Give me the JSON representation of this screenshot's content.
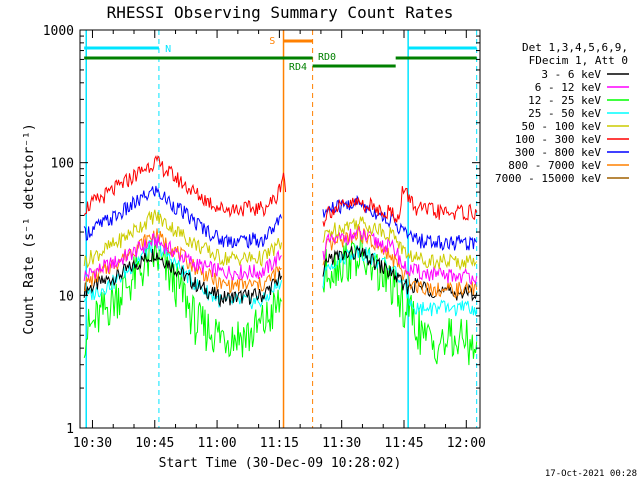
{
  "chart_data": {
    "type": "line",
    "title": "RHESSI Observing Summary Count Rates",
    "xlabel": "Start Time (30-Dec-09 10:28:02)",
    "ylabel": "Count Rate (s⁻¹ detector⁻¹)",
    "yscale": "log",
    "ylim": [
      1,
      1000
    ],
    "xlim_minutes": [
      -1.0,
      95.3
    ],
    "x_start_time": "10:28:02",
    "x_ticks": [
      {
        "label": "10:30",
        "minutes": 2
      },
      {
        "label": "10:45",
        "minutes": 17
      },
      {
        "label": "11:00",
        "minutes": 32
      },
      {
        "label": "11:15",
        "minutes": 47
      },
      {
        "label": "11:30",
        "minutes": 62
      },
      {
        "label": "11:45",
        "minutes": 77
      },
      {
        "label": "12:00",
        "minutes": 92
      }
    ],
    "y_ticks": [
      {
        "label": "1",
        "value": 1
      },
      {
        "label": "10",
        "value": 10
      },
      {
        "label": "100",
        "value": 100
      },
      {
        "label": "1000",
        "value": 1000
      }
    ],
    "legend_header": [
      "Det 1,3,4,5,6,9,",
      "FDecim 1, Att 0"
    ],
    "segments": [
      [
        0,
        48.5
      ],
      [
        57.5,
        94.5
      ]
    ],
    "series": [
      {
        "name": "3 - 6 keV",
        "color": "#000000",
        "points": [
          [
            0,
            11
          ],
          [
            8,
            14
          ],
          [
            17,
            21
          ],
          [
            27,
            12
          ],
          [
            33,
            9.5
          ],
          [
            43,
            10
          ],
          [
            47.5,
            14
          ],
          [
            49,
            20
          ],
          [
            57.5,
            13
          ],
          [
            58.5,
            19
          ],
          [
            66,
            21
          ],
          [
            75,
            14
          ],
          [
            77,
            11.5
          ],
          [
            80,
            12
          ],
          [
            86,
            10.5
          ],
          [
            94.5,
            10.5
          ]
        ]
      },
      {
        "name": "6 - 12 keV",
        "color": "#ff00ff",
        "points": [
          [
            0,
            14
          ],
          [
            8,
            18
          ],
          [
            17,
            26
          ],
          [
            27,
            17
          ],
          [
            33,
            15
          ],
          [
            43,
            15
          ],
          [
            47.5,
            20
          ],
          [
            49,
            26
          ],
          [
            57.5,
            20
          ],
          [
            58.5,
            25
          ],
          [
            66,
            29
          ],
          [
            75,
            22
          ],
          [
            77,
            16
          ],
          [
            80,
            15
          ],
          [
            86,
            14
          ],
          [
            94.5,
            14
          ]
        ]
      },
      {
        "name": "12 - 25 keV",
        "color": "#00ff00",
        "points": [
          [
            0,
            5
          ],
          [
            8,
            10
          ],
          [
            17,
            20
          ],
          [
            24,
            10
          ],
          [
            27,
            6
          ],
          [
            33,
            5
          ],
          [
            40,
            5
          ],
          [
            44,
            6.5
          ],
          [
            47.5,
            9
          ],
          [
            49,
            13
          ],
          [
            57.5,
            12
          ],
          [
            58.5,
            16
          ],
          [
            66,
            20
          ],
          [
            74,
            12
          ],
          [
            76,
            9
          ],
          [
            79,
            7
          ],
          [
            82,
            4.5
          ],
          [
            94.5,
            4.5
          ]
        ]
      },
      {
        "name": "25 - 50 keV",
        "color": "#00ffff",
        "points": [
          [
            0,
            9.5
          ],
          [
            8,
            13
          ],
          [
            17,
            25
          ],
          [
            27,
            12
          ],
          [
            33,
            9
          ],
          [
            43,
            9
          ],
          [
            47.5,
            13
          ],
          [
            49,
            19
          ],
          [
            57.5,
            12
          ],
          [
            58.5,
            17
          ],
          [
            66,
            22
          ],
          [
            75,
            15
          ],
          [
            78,
            10
          ],
          [
            80,
            8
          ],
          [
            86,
            8
          ],
          [
            94.5,
            8
          ]
        ]
      },
      {
        "name": "50 - 100 keV",
        "color": "#cccc00",
        "points": [
          [
            0,
            18
          ],
          [
            8,
            25
          ],
          [
            17,
            40
          ],
          [
            27,
            24
          ],
          [
            33,
            19
          ],
          [
            43,
            19
          ],
          [
            47.5,
            25
          ],
          [
            49,
            32
          ],
          [
            57.5,
            25
          ],
          [
            58.5,
            30
          ],
          [
            66,
            36
          ],
          [
            75,
            28
          ],
          [
            77,
            21
          ],
          [
            80,
            19
          ],
          [
            86,
            18
          ],
          [
            94.5,
            18
          ]
        ]
      },
      {
        "name": "100 - 300 keV",
        "color": "#ff0000",
        "points": [
          [
            0,
            45
          ],
          [
            8,
            65
          ],
          [
            17,
            102
          ],
          [
            27,
            58
          ],
          [
            33,
            45
          ],
          [
            43,
            45
          ],
          [
            46.5,
            55
          ],
          [
            48,
            85
          ],
          [
            48.5,
            60
          ],
          [
            57.5,
            35
          ],
          [
            58.5,
            43
          ],
          [
            66,
            50
          ],
          [
            74,
            42
          ],
          [
            76,
            38
          ],
          [
            76.6,
            62
          ],
          [
            78,
            56
          ],
          [
            80,
            45
          ],
          [
            86,
            42
          ],
          [
            94.5,
            42
          ]
        ]
      },
      {
        "name": "300 - 800 keV",
        "color": "#0000ff",
        "points": [
          [
            0,
            29
          ],
          [
            8,
            40
          ],
          [
            17,
            62
          ],
          [
            27,
            35
          ],
          [
            33,
            26
          ],
          [
            43,
            26
          ],
          [
            47.5,
            38
          ],
          [
            49,
            50
          ],
          [
            57.5,
            39
          ],
          [
            58.5,
            44
          ],
          [
            66,
            50
          ],
          [
            75,
            35
          ],
          [
            77,
            30
          ],
          [
            80,
            26
          ],
          [
            86,
            25
          ],
          [
            94.5,
            25
          ]
        ]
      },
      {
        "name": "800 - 7000 keV",
        "color": "#ff8000",
        "points": [
          [
            0,
            12
          ],
          [
            8,
            18
          ],
          [
            17,
            29
          ],
          [
            27,
            16
          ],
          [
            33,
            12
          ],
          [
            43,
            12
          ],
          [
            47.5,
            16
          ],
          [
            49,
            22
          ],
          [
            57.5,
            16
          ],
          [
            58.5,
            23
          ],
          [
            66,
            30
          ],
          [
            75,
            18
          ],
          [
            77,
            14
          ],
          [
            80,
            12
          ],
          [
            86,
            11
          ],
          [
            94.5,
            11
          ]
        ]
      },
      {
        "name": "7000 - 15000 keV",
        "color": "#a06000",
        "points": []
      }
    ],
    "markers": {
      "saa_label": "S",
      "night_label": "N",
      "rd4_label": "RD4",
      "rd0_label": "RD0",
      "cyan_solid_minutes": [
        0.5,
        78
      ],
      "cyan_dashed_minutes": [
        18,
        94.5
      ],
      "orange_solid_minutes": [
        48
      ],
      "orange_dashed_minutes": [
        55
      ]
    }
  },
  "footer": {
    "timestamp": "17-Oct-2021 00:28"
  }
}
